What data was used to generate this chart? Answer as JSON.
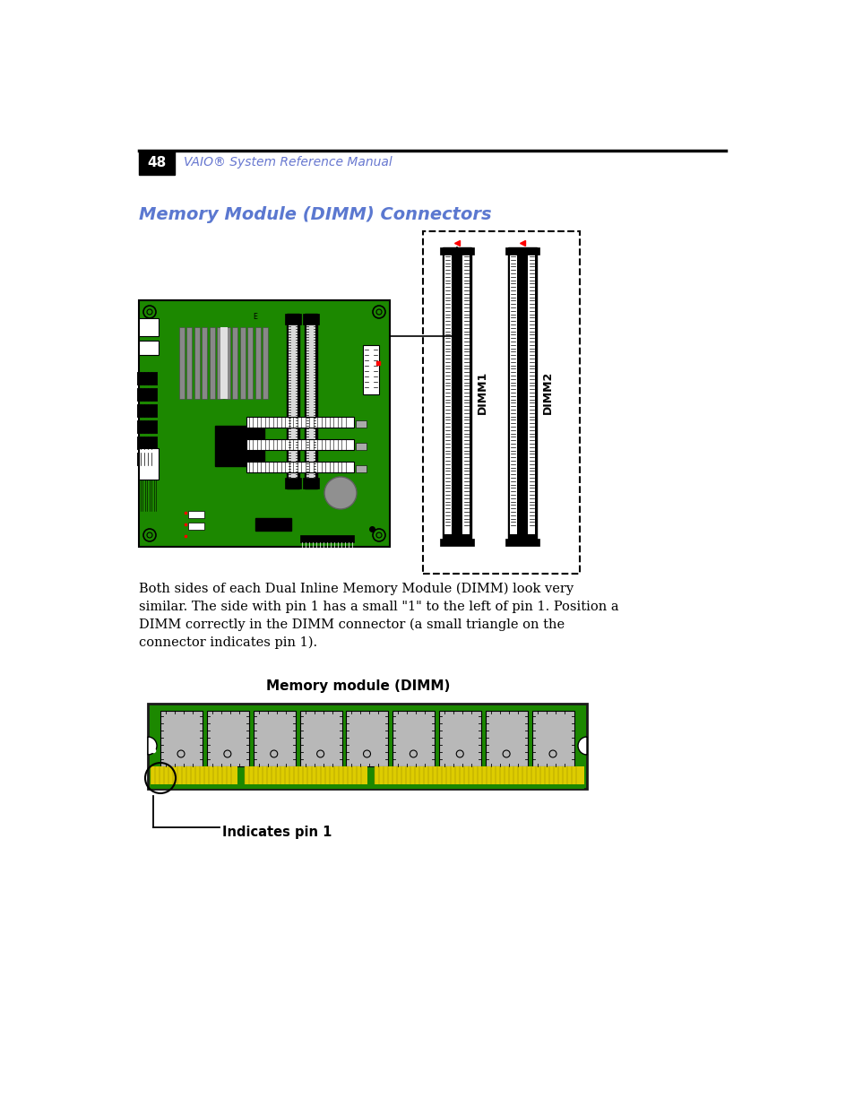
{
  "page_num": "48",
  "header_text": "VAIO® System Reference Manual",
  "section_title": "Memory Module (DIMM) Connectors",
  "body_text": "Both sides of each Dual Inline Memory Module (DIMM) look very\nsimilar. The side with pin 1 has a small \"1\" to the left of pin 1. Position a\nDIMM correctly in the DIMM connector (a small triangle on the\nconnector indicates pin 1).",
  "dimm_label": "Memory module (DIMM)",
  "pin1_label": "Indicates pin 1",
  "header_color": "#6878d0",
  "title_color": "#5b78d0",
  "bg_color": "#ffffff",
  "pcb_green": "#1c8800",
  "chip_gray": "#b8b8b8",
  "gold_yellow": "#ddcc00",
  "dimm1_label": "DIMM1",
  "dimm2_label": "DIMM2"
}
